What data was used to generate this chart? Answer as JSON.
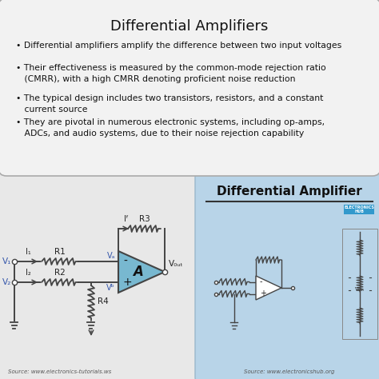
{
  "title": "Differential Amplifiers",
  "title_fontsize": 13,
  "bg_color": "#c8c8c8",
  "top_box_facecolor": "#f2f2f2",
  "top_box_edgecolor": "#aaaaaa",
  "bottom_left_bg": "#e8e8e8",
  "bottom_right_bg": "#b8d4e8",
  "bullet_points": [
    "• Differential amplifiers amplify the difference between two input voltages",
    "• Their effectiveness is measured by the common-mode rejection ratio\n   (CMRR), with a high CMRR denoting proficient noise reduction",
    "• The typical design includes two transistors, resistors, and a constant\n   current source",
    "• They are pivotal in numerous electronic systems, including op-amps,\n   ADCs, and audio systems, due to their noise rejection capability"
  ],
  "bullet_fontsize": 7.8,
  "source_text_left": "Source: www.electronics-tutorials.ws",
  "source_text_right": "Source: www.electronicshub.org",
  "diff_amp_label": "Differential Amplifier",
  "opamp_color": "#78b8d0",
  "wire_color": "#444444",
  "label_color_blue": "#3355aa",
  "label_color_dark": "#222222"
}
